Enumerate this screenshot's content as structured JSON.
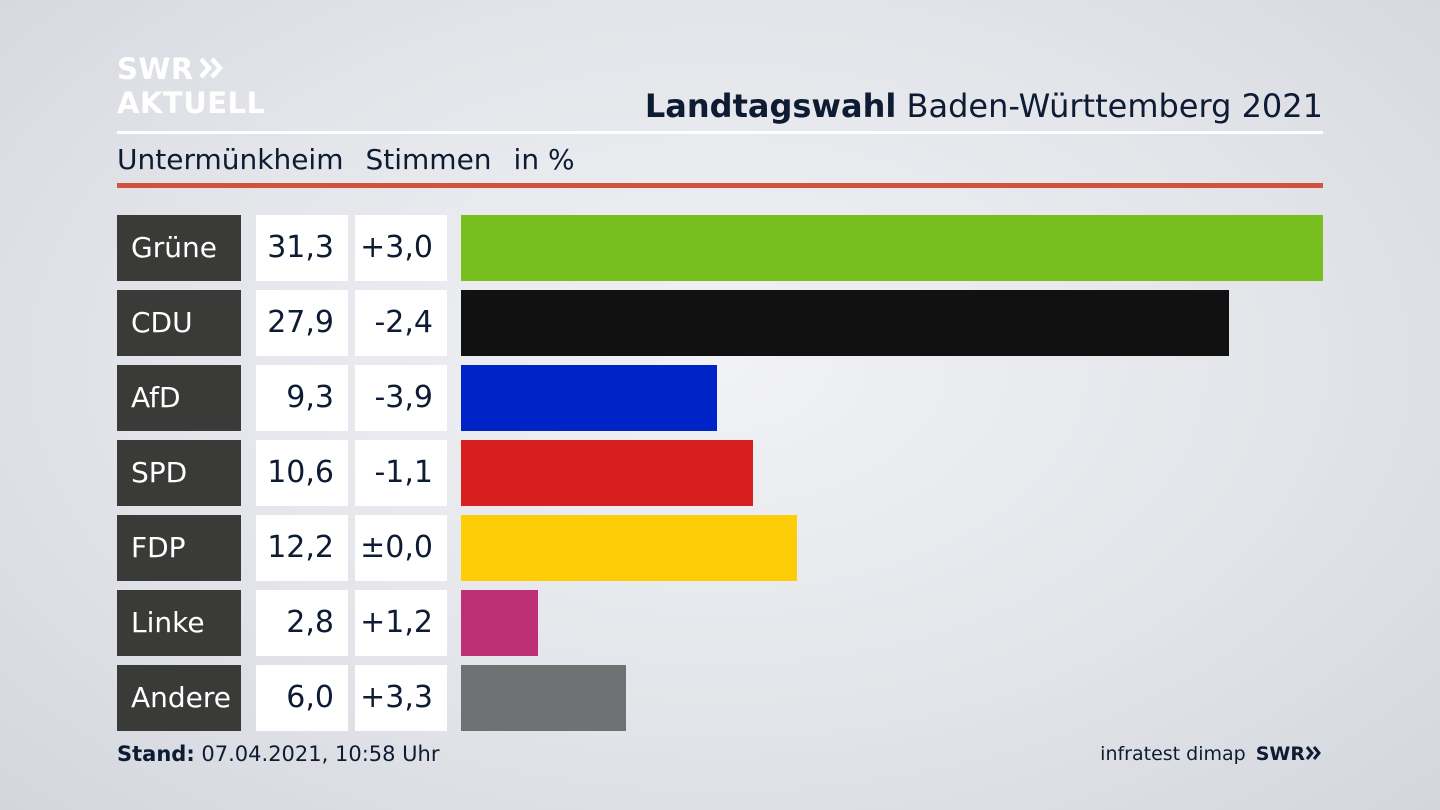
{
  "logo": {
    "line1": "SWR",
    "line2": "AKTUELL"
  },
  "title": {
    "bold": "Landtagswahl",
    "rest": " Baden-Württemberg 2021"
  },
  "subtitle": {
    "place": "Untermünkheim",
    "measure": "Stimmen",
    "unit": "in %"
  },
  "footer": {
    "stand_label": "Stand:",
    "stand_value": " 07.04.2021, 10:58 Uhr",
    "source": "infratest dimap",
    "brand": "SWR"
  },
  "chart_data": {
    "type": "bar",
    "orientation": "horizontal",
    "title": "Landtagswahl Baden-Württemberg 2021",
    "subtitle": "Untermünkheim Stimmen in %",
    "categories": [
      "Grüne",
      "CDU",
      "AfD",
      "SPD",
      "FDP",
      "Linke",
      "Andere"
    ],
    "values": [
      31.3,
      27.9,
      9.3,
      10.6,
      12.2,
      2.8,
      6.0
    ],
    "value_labels": [
      "31,3",
      "27,9",
      "9,3",
      "10,6",
      "12,2",
      "2,8",
      "6,0"
    ],
    "diff_labels": [
      "+3,0",
      "-2,4",
      "-3,9",
      "-1,1",
      "±0,0",
      "+1,2",
      "+3,3"
    ],
    "colors": [
      "#78be1e",
      "#111111",
      "#0023c8",
      "#d71f1f",
      "#ffcc08",
      "#be3075",
      "#707173"
    ],
    "xlim": [
      0,
      31.3
    ],
    "grid": false,
    "legend": "none"
  }
}
